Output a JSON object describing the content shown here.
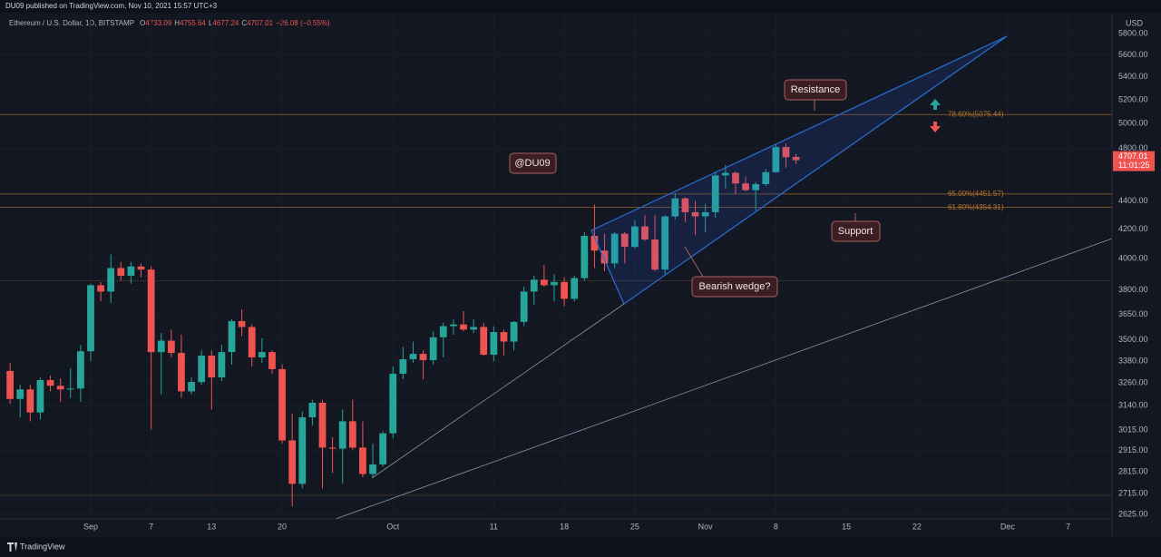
{
  "header": {
    "published": "DU09 published on TradingView.com, Nov 10, 2021 15:57 UTC+3",
    "symbol": "Ethereum / U.S. Dollar, 1D, BITSTAMP",
    "letters": [
      "O",
      "H",
      "L",
      "C"
    ],
    "change": "−26.08 (−0.55%)"
  },
  "footer": {
    "brand": "TradingView"
  },
  "chart_data": {
    "type": "candlestick",
    "currency": "USD",
    "x": [
      "2021-08-24",
      "2021-08-25",
      "2021-08-26",
      "2021-08-27",
      "2021-08-28",
      "2021-08-29",
      "2021-08-30",
      "2021-08-31",
      "2021-09-01",
      "2021-09-02",
      "2021-09-03",
      "2021-09-04",
      "2021-09-05",
      "2021-09-06",
      "2021-09-07",
      "2021-09-08",
      "2021-09-09",
      "2021-09-10",
      "2021-09-11",
      "2021-09-12",
      "2021-09-13",
      "2021-09-14",
      "2021-09-15",
      "2021-09-16",
      "2021-09-17",
      "2021-09-18",
      "2021-09-19",
      "2021-09-20",
      "2021-09-21",
      "2021-09-22",
      "2021-09-23",
      "2021-09-24",
      "2021-09-25",
      "2021-09-26",
      "2021-09-27",
      "2021-09-28",
      "2021-09-29",
      "2021-09-30",
      "2021-10-01",
      "2021-10-02",
      "2021-10-03",
      "2021-10-04",
      "2021-10-05",
      "2021-10-06",
      "2021-10-07",
      "2021-10-08",
      "2021-10-09",
      "2021-10-10",
      "2021-10-11",
      "2021-10-12",
      "2021-10-13",
      "2021-10-14",
      "2021-10-15",
      "2021-10-16",
      "2021-10-17",
      "2021-10-18",
      "2021-10-19",
      "2021-10-20",
      "2021-10-21",
      "2021-10-22",
      "2021-10-23",
      "2021-10-24",
      "2021-10-25",
      "2021-10-26",
      "2021-10-27",
      "2021-10-28",
      "2021-10-29",
      "2021-10-30",
      "2021-10-31",
      "2021-11-01",
      "2021-11-02",
      "2021-11-03",
      "2021-11-04",
      "2021-11-05",
      "2021-11-06",
      "2021-11-07",
      "2021-11-08",
      "2021-11-09",
      "2021-11-10"
    ],
    "open": [
      3325,
      3175,
      3225,
      3105,
      3275,
      3245,
      3225,
      3230,
      3435,
      3830,
      3790,
      3940,
      3890,
      3950,
      3930,
      3430,
      3495,
      3425,
      3215,
      3265,
      3410,
      3290,
      3430,
      3610,
      3575,
      3400,
      3430,
      3335,
      2965,
      2760,
      3080,
      3155,
      2930,
      2925,
      3060,
      2930,
      2805,
      2850,
      3000,
      3310,
      3390,
      3420,
      3385,
      3515,
      3580,
      3590,
      3560,
      3575,
      3415,
      3545,
      3490,
      3605,
      3790,
      3865,
      3830,
      3850,
      3745,
      3875,
      4155,
      4055,
      3970,
      4170,
      4080,
      4220,
      4130,
      3930,
      4290,
      4420,
      4320,
      4290,
      4320,
      4590,
      4610,
      4530,
      4480,
      4525,
      4615,
      4810,
      4733.09
    ],
    "high": [
      3370,
      3250,
      3250,
      3290,
      3300,
      3285,
      3340,
      3470,
      3840,
      3850,
      4030,
      3980,
      3980,
      3970,
      3950,
      3540,
      3560,
      3530,
      3290,
      3440,
      3440,
      3470,
      3620,
      3680,
      3590,
      3510,
      3440,
      3360,
      3100,
      3110,
      3170,
      3170,
      2980,
      3120,
      3170,
      3060,
      2950,
      3010,
      3350,
      3460,
      3490,
      3440,
      3550,
      3600,
      3620,
      3670,
      3620,
      3600,
      3580,
      3560,
      3610,
      3820,
      3890,
      3960,
      3900,
      3880,
      3890,
      4180,
      4375,
      4170,
      4180,
      4180,
      4260,
      4300,
      4300,
      4300,
      4460,
      4430,
      4400,
      4380,
      4620,
      4670,
      4620,
      4580,
      4540,
      4640,
      4830,
      4840,
      4755.64
    ],
    "low": [
      3150,
      3080,
      3060,
      3070,
      3215,
      3160,
      3180,
      3160,
      3380,
      3730,
      3720,
      3860,
      3840,
      3880,
      3020,
      3200,
      3400,
      3180,
      3200,
      3250,
      3120,
      3270,
      3360,
      3520,
      3350,
      3370,
      3310,
      2950,
      2660,
      2740,
      3040,
      2740,
      2810,
      2760,
      2920,
      2790,
      2790,
      2840,
      2975,
      3280,
      3370,
      3280,
      3360,
      3400,
      3530,
      3550,
      3540,
      3410,
      3380,
      3410,
      3440,
      3580,
      3710,
      3820,
      3730,
      3700,
      3730,
      3860,
      3940,
      3920,
      3940,
      3970,
      4070,
      4120,
      3920,
      3900,
      4270,
      4250,
      4160,
      4180,
      4280,
      4490,
      4450,
      4470,
      4330,
      4510,
      4610,
      4650,
      4677.24
    ],
    "close": [
      3175,
      3225,
      3105,
      3275,
      3245,
      3225,
      3230,
      3435,
      3830,
      3790,
      3940,
      3890,
      3950,
      3930,
      3430,
      3495,
      3425,
      3215,
      3265,
      3410,
      3290,
      3430,
      3610,
      3575,
      3400,
      3430,
      3335,
      2965,
      2760,
      3080,
      3155,
      2930,
      2925,
      3060,
      2930,
      2805,
      2850,
      3000,
      3310,
      3390,
      3420,
      3385,
      3515,
      3580,
      3590,
      3560,
      3575,
      3415,
      3545,
      3490,
      3605,
      3790,
      3865,
      3830,
      3850,
      3745,
      3875,
      4155,
      4055,
      3970,
      4170,
      4080,
      4220,
      4130,
      3930,
      4290,
      4420,
      4320,
      4290,
      4320,
      4590,
      4610,
      4530,
      4480,
      4525,
      4615,
      4810,
      4730,
      4707.01
    ],
    "up_color": "#26a69a",
    "down_color": "#ef5350",
    "log": true,
    "grid": true,
    "ylim": [
      2605,
      5932
    ],
    "yticks": [
      {
        "value": 5800,
        "label": "5800.00"
      },
      {
        "value": 5600,
        "label": "5600.00"
      },
      {
        "value": 5400,
        "label": "5400.00"
      },
      {
        "value": 5200,
        "label": "5200.00"
      },
      {
        "value": 5000,
        "label": "5000.00"
      },
      {
        "value": 4800,
        "label": "4800.00"
      },
      {
        "value": 4400,
        "label": "4400.00"
      },
      {
        "value": 4200,
        "label": "4200.00"
      },
      {
        "value": 4000,
        "label": "4000.00"
      },
      {
        "value": 3800,
        "label": "3800.00"
      },
      {
        "value": 3650,
        "label": "3650.00"
      },
      {
        "value": 3500,
        "label": "3500.00"
      },
      {
        "value": 3380,
        "label": "3380.00"
      },
      {
        "value": 3260,
        "label": "3260.00"
      },
      {
        "value": 3140,
        "label": "3140.00"
      },
      {
        "value": 3015,
        "label": "3015.00"
      },
      {
        "value": 2915,
        "label": "2915.00"
      },
      {
        "value": 2815,
        "label": "2815.00"
      },
      {
        "value": 2715,
        "label": "2715.00"
      },
      {
        "value": 2625,
        "label": "2625.00"
      }
    ],
    "xlim": [
      "2021-08-23",
      "2021-12-11"
    ],
    "xticks": [
      {
        "value": "2021-09-01",
        "label": "Sep"
      },
      {
        "value": "2021-09-07",
        "label": "7"
      },
      {
        "value": "2021-09-13",
        "label": "13"
      },
      {
        "value": "2021-09-20",
        "label": "20"
      },
      {
        "value": "2021-10-01",
        "label": "Oct"
      },
      {
        "value": "2021-10-11",
        "label": "11"
      },
      {
        "value": "2021-10-18",
        "label": "18"
      },
      {
        "value": "2021-10-25",
        "label": "25"
      },
      {
        "value": "2021-11-01",
        "label": "Nov"
      },
      {
        "value": "2021-11-08",
        "label": "8"
      },
      {
        "value": "2021-11-15",
        "label": "15"
      },
      {
        "value": "2021-11-22",
        "label": "22"
      },
      {
        "value": "2021-12-01",
        "label": "Dec"
      },
      {
        "value": "2021-12-07",
        "label": "7"
      }
    ],
    "countdown": "11:01:25",
    "fib_color": "#b8752a",
    "fib_levels": [
      {
        "value": 5075.44,
        "label": "78.60%(5075.44)"
      },
      {
        "value": 4451.57,
        "label": "65.00%(4451.57)"
      },
      {
        "value": 4354.31,
        "label": "61.80%(4354.31)"
      },
      3858,
      2708
    ],
    "annotations": [
      "Resistance",
      "@DU09",
      "Support",
      "Bearish wedge?"
    ]
  }
}
